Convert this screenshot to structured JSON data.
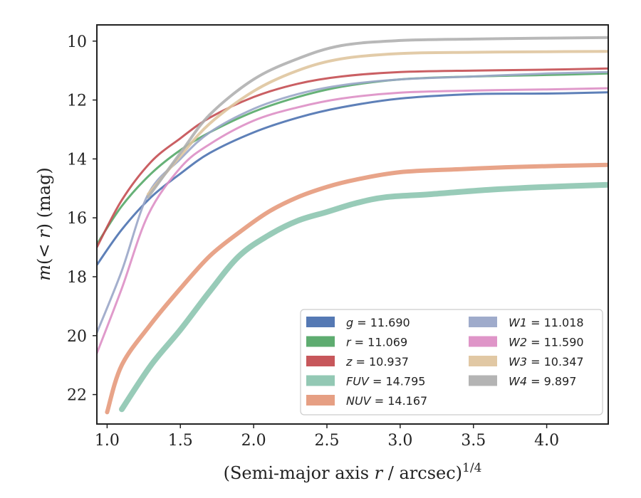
{
  "chart_data": {
    "type": "line",
    "xlabel": "(Semi-major axis r / arcsec)^1/4",
    "ylabel": "m(< r) (mag)",
    "xlim": [
      0.93,
      4.42
    ],
    "ylim": [
      23.0,
      9.45
    ],
    "y_inverted": true,
    "grid": false,
    "legend_position": "lower-right",
    "x_ticks": [
      {
        "value": 1.0,
        "label": "1.0"
      },
      {
        "value": 1.5,
        "label": "1.5"
      },
      {
        "value": 2.0,
        "label": "2.0"
      },
      {
        "value": 2.5,
        "label": "2.5"
      },
      {
        "value": 3.0,
        "label": "3.0"
      },
      {
        "value": 3.5,
        "label": "3.5"
      },
      {
        "value": 4.0,
        "label": "4.0"
      }
    ],
    "y_ticks": [
      {
        "value": 10,
        "label": "10"
      },
      {
        "value": 12,
        "label": "12"
      },
      {
        "value": 14,
        "label": "14"
      },
      {
        "value": 16,
        "label": "16"
      },
      {
        "value": 18,
        "label": "18"
      },
      {
        "value": 20,
        "label": "20"
      },
      {
        "value": 22,
        "label": "22"
      }
    ],
    "series": [
      {
        "name": "g",
        "total_mag": "11.690",
        "color": "#4c72b0",
        "width": 3,
        "x": [
          0.93,
          1.1,
          1.3,
          1.5,
          1.7,
          2.0,
          2.3,
          2.6,
          3.0,
          3.5,
          4.0,
          4.42
        ],
        "y": [
          17.6,
          16.4,
          15.3,
          14.5,
          13.8,
          13.1,
          12.6,
          12.25,
          11.95,
          11.8,
          11.78,
          11.74
        ]
      },
      {
        "name": "r",
        "total_mag": "11.069",
        "color": "#55a868",
        "width": 3,
        "x": [
          0.93,
          1.1,
          1.3,
          1.5,
          1.7,
          2.0,
          2.3,
          2.6,
          3.0,
          3.5,
          4.0,
          4.42
        ],
        "y": [
          16.9,
          15.6,
          14.5,
          13.7,
          13.1,
          12.4,
          11.9,
          11.55,
          11.3,
          11.2,
          11.15,
          11.1
        ]
      },
      {
        "name": "z",
        "total_mag": "10.937",
        "color": "#c44e52",
        "width": 3,
        "x": [
          0.93,
          1.1,
          1.3,
          1.5,
          1.7,
          2.0,
          2.3,
          2.6,
          3.0,
          3.5,
          4.0,
          4.42
        ],
        "y": [
          17.0,
          15.4,
          14.1,
          13.3,
          12.6,
          11.9,
          11.45,
          11.2,
          11.05,
          11.0,
          10.97,
          10.93
        ]
      },
      {
        "name": "FUV",
        "total_mag": "14.795",
        "color": "#8dc5b0",
        "width": 8,
        "x": [
          1.1,
          1.3,
          1.5,
          1.7,
          1.9,
          2.1,
          2.3,
          2.5,
          2.7,
          2.9,
          3.2,
          3.6,
          4.0,
          4.42
        ],
        "y": [
          22.5,
          21.0,
          19.8,
          18.5,
          17.3,
          16.6,
          16.1,
          15.8,
          15.5,
          15.3,
          15.2,
          15.05,
          14.95,
          14.88
        ]
      },
      {
        "name": "NUV",
        "total_mag": "14.167",
        "color": "#e59a7c",
        "width": 6,
        "x": [
          1.0,
          1.1,
          1.3,
          1.5,
          1.7,
          1.9,
          2.1,
          2.3,
          2.5,
          2.7,
          3.0,
          3.4,
          3.8,
          4.42
        ],
        "y": [
          22.6,
          21.0,
          19.6,
          18.4,
          17.3,
          16.5,
          15.8,
          15.3,
          14.95,
          14.7,
          14.45,
          14.35,
          14.27,
          14.2
        ]
      },
      {
        "name": "W1",
        "total_mag": "11.018",
        "color": "#9aa6c8",
        "width": 3,
        "x": [
          0.93,
          1.1,
          1.28,
          1.5,
          1.7,
          2.0,
          2.3,
          2.6,
          3.0,
          3.5,
          4.0,
          4.42
        ],
        "y": [
          19.9,
          17.8,
          15.2,
          14.0,
          13.1,
          12.3,
          11.8,
          11.5,
          11.3,
          11.2,
          11.1,
          11.05
        ]
      },
      {
        "name": "W2",
        "total_mag": "11.590",
        "color": "#dd8fc5",
        "width": 3,
        "x": [
          0.93,
          1.1,
          1.28,
          1.5,
          1.7,
          2.0,
          2.3,
          2.6,
          3.0,
          3.5,
          4.0,
          4.42
        ],
        "y": [
          20.6,
          18.4,
          15.9,
          14.3,
          13.5,
          12.7,
          12.25,
          11.95,
          11.75,
          11.68,
          11.64,
          11.6
        ]
      },
      {
        "name": "W3",
        "total_mag": "10.347",
        "color": "#dfc59f",
        "width": 4,
        "x": [
          1.28,
          1.5,
          1.7,
          2.0,
          2.3,
          2.6,
          3.0,
          3.5,
          4.0,
          4.42
        ],
        "y": [
          15.2,
          13.9,
          12.8,
          11.7,
          11.0,
          10.6,
          10.42,
          10.38,
          10.36,
          10.35
        ]
      },
      {
        "name": "W4",
        "total_mag": "9.897",
        "color": "#b0b0b0",
        "width": 4,
        "x": [
          1.28,
          1.5,
          1.7,
          2.0,
          2.3,
          2.6,
          3.0,
          3.5,
          4.0,
          4.42
        ],
        "y": [
          15.3,
          13.8,
          12.5,
          11.3,
          10.6,
          10.15,
          9.98,
          9.93,
          9.9,
          9.88
        ]
      }
    ]
  }
}
